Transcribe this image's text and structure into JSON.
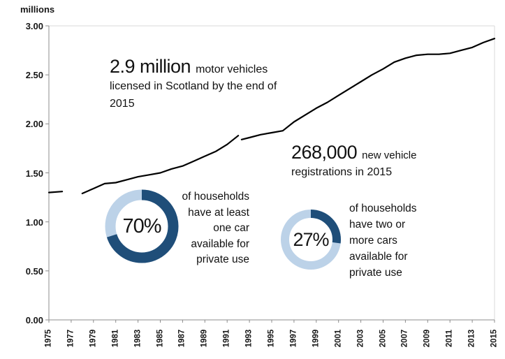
{
  "chart_data": {
    "type": "line",
    "title": "",
    "ylabel": "millions",
    "xlabel": "",
    "xlim": [
      1975,
      2015
    ],
    "ylim": [
      0,
      3
    ],
    "grid": false,
    "legend": false,
    "line_color": "#000000",
    "layout_note": "single black line with a data gap at 1977 and a series break at 1992",
    "y_ticks": [
      "3.00",
      "2.50",
      "2.00",
      "1.50",
      "1.00",
      "0.50",
      "0.00"
    ],
    "x_ticks": [
      "1975",
      "1977",
      "1979",
      "1981",
      "1983",
      "1985",
      "1987",
      "1989",
      "1991",
      "1993",
      "1995",
      "1997",
      "1999",
      "2001",
      "2003",
      "2005",
      "2007",
      "2009",
      "2011",
      "2013",
      "2015"
    ],
    "series": [
      {
        "name": "licensed-motor-vehicles-1975-1976",
        "x": [
          1975,
          1976.2
        ],
        "values": [
          1.3,
          1.31
        ]
      },
      {
        "name": "licensed-motor-vehicles-1978-1992",
        "x": [
          1978,
          1979,
          1980,
          1981,
          1982,
          1983,
          1984,
          1985,
          1986,
          1987,
          1988,
          1989,
          1990,
          1991,
          1992
        ],
        "values": [
          1.29,
          1.34,
          1.39,
          1.4,
          1.43,
          1.46,
          1.48,
          1.5,
          1.54,
          1.57,
          1.62,
          1.67,
          1.72,
          1.79,
          1.88
        ]
      },
      {
        "name": "licensed-motor-vehicles-1992-2015",
        "x": [
          1992.3,
          1993,
          1994,
          1995,
          1996,
          1997,
          1998,
          1999,
          2000,
          2001,
          2002,
          2003,
          2004,
          2005,
          2006,
          2007,
          2008,
          2009,
          2010,
          2011,
          2012,
          2013,
          2014,
          2015
        ],
        "values": [
          1.84,
          1.86,
          1.89,
          1.91,
          1.93,
          2.02,
          2.09,
          2.16,
          2.22,
          2.29,
          2.36,
          2.43,
          2.5,
          2.56,
          2.63,
          2.67,
          2.7,
          2.71,
          2.71,
          2.72,
          2.75,
          2.78,
          2.83,
          2.87
        ]
      }
    ]
  },
  "annotations": {
    "vehicles": {
      "big": "2.9 million",
      "small": "motor vehicles",
      "line2": "licensed in Scotland by the end of",
      "line3": "2015"
    },
    "registrations": {
      "big": "268,000",
      "small": "new vehicle",
      "line2": "registrations in 2015"
    }
  },
  "donuts": [
    {
      "label": "70%",
      "value": 70,
      "lines": [
        "of households",
        "have at least",
        "one car",
        "available for",
        "private use"
      ]
    },
    {
      "label": "27%",
      "value": 27,
      "lines": [
        "of households",
        "have two or",
        "more cars",
        "available for",
        "private use"
      ]
    }
  ],
  "colors": {
    "dark_blue": "#1F4E79",
    "light_blue": "#BCD2E8",
    "axis": "#8C8C8C",
    "plot_border": "#D9D9D9",
    "line": "#000000",
    "text": "#1A1A1A"
  }
}
